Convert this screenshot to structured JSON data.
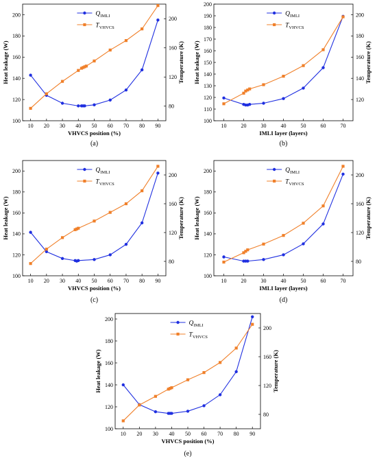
{
  "figure": {
    "colors": {
      "q": "#1f2fe0",
      "t": "#f0802a"
    },
    "legend_q_main": "Q",
    "legend_q_sub": "IMLI",
    "legend_t_main": "T",
    "legend_t_sub": "VHVCS"
  },
  "chart_data": [
    {
      "type": "line",
      "label": "(a)",
      "xlabel": "VHVCS position (%)",
      "ylabel": "Heat leakage (W)",
      "y2label": "Temperature (K)",
      "xlim": [
        5,
        95
      ],
      "xticks": [
        10,
        20,
        30,
        40,
        50,
        60,
        70,
        80,
        90
      ],
      "ylim": [
        100,
        210
      ],
      "yticks": [
        100,
        120,
        140,
        160,
        180,
        200
      ],
      "y2lim": [
        60,
        220
      ],
      "y2ticks": [
        80,
        120,
        160,
        200
      ],
      "legend": "top-center",
      "series": [
        {
          "name": "Q_IMLI",
          "axis": "left",
          "marker": "circle",
          "x": [
            10,
            20,
            30,
            40,
            42,
            43,
            44,
            50,
            60,
            70,
            80,
            90
          ],
          "values": [
            143,
            124,
            116.5,
            114,
            114,
            114,
            114,
            115,
            119.5,
            129,
            148,
            195
          ]
        },
        {
          "name": "T_VHVCS",
          "axis": "right",
          "marker": "square",
          "x": [
            10,
            20,
            30,
            40,
            42,
            43,
            44,
            45,
            50,
            60,
            70,
            80,
            90
          ],
          "values": [
            77,
            97,
            114,
            129,
            132,
            133,
            134,
            135,
            142,
            157,
            170,
            186,
            218
          ]
        }
      ]
    },
    {
      "type": "line",
      "label": "(b)",
      "xlabel": "IMLI layer (layers)",
      "ylabel": "Heat leakage (W)",
      "y2label": "Temperature (K)",
      "xlim": [
        5,
        75
      ],
      "xticks": [
        10,
        20,
        30,
        40,
        50,
        60,
        70
      ],
      "ylim": [
        100,
        200
      ],
      "yticks": [
        100,
        110,
        120,
        130,
        140,
        150,
        160,
        170,
        180,
        190,
        200
      ],
      "y2lim": [
        100,
        210
      ],
      "y2ticks": [
        120,
        140,
        160,
        180,
        200
      ],
      "legend": "top-center",
      "series": [
        {
          "name": "Q_IMLI",
          "axis": "left",
          "marker": "circle",
          "x": [
            10,
            20,
            21,
            22,
            23,
            30,
            40,
            50,
            60,
            70
          ],
          "values": [
            119.5,
            114,
            113.5,
            113.5,
            114,
            115,
            119,
            128,
            145.5,
            189.5
          ]
        },
        {
          "name": "T_VHVCS",
          "axis": "right",
          "marker": "square",
          "x": [
            10,
            20,
            21,
            22,
            23,
            30,
            40,
            50,
            60,
            70
          ],
          "values": [
            116,
            126,
            128,
            129,
            130,
            134,
            142,
            152,
            167,
            198
          ]
        }
      ]
    },
    {
      "type": "line",
      "label": "(c)",
      "xlabel": "VHVCS position (%)",
      "ylabel": "Heat leakage (W)",
      "y2label": "Temperature (K)",
      "xlim": [
        5,
        95
      ],
      "xticks": [
        10,
        20,
        30,
        40,
        50,
        60,
        70,
        80,
        90
      ],
      "ylim": [
        100,
        210
      ],
      "yticks": [
        100,
        120,
        140,
        160,
        180,
        200
      ],
      "y2lim": [
        60,
        220
      ],
      "y2ticks": [
        80,
        120,
        160,
        200
      ],
      "legend": "top-center",
      "series": [
        {
          "name": "Q_IMLI",
          "axis": "left",
          "marker": "circle",
          "x": [
            10,
            20,
            30,
            38,
            39,
            40,
            50,
            60,
            70,
            80,
            90
          ],
          "values": [
            141.5,
            123,
            116.5,
            114.5,
            114,
            114.5,
            115.5,
            120,
            130,
            150.5,
            198
          ]
        },
        {
          "name": "T_VHVCS",
          "axis": "right",
          "marker": "square",
          "x": [
            10,
            20,
            30,
            38,
            39,
            40,
            50,
            60,
            70,
            80,
            90
          ],
          "values": [
            77,
            97,
            113,
            124,
            125,
            126,
            136,
            148,
            160,
            178,
            212
          ]
        }
      ]
    },
    {
      "type": "line",
      "label": "(d)",
      "xlabel": "IMLI layer (layers)",
      "ylabel": "Heat leakage (W)",
      "y2label": "Temperature (K)",
      "xlim": [
        5,
        75
      ],
      "xticks": [
        10,
        20,
        30,
        40,
        50,
        60,
        70
      ],
      "ylim": [
        100,
        210
      ],
      "yticks": [
        100,
        120,
        140,
        160,
        180,
        200
      ],
      "y2lim": [
        60,
        220
      ],
      "y2ticks": [
        80,
        120,
        160,
        200
      ],
      "legend": "top-center",
      "series": [
        {
          "name": "Q_IMLI",
          "axis": "left",
          "marker": "circle",
          "x": [
            10,
            20,
            21,
            22,
            30,
            40,
            50,
            60,
            70
          ],
          "values": [
            118,
            114,
            114,
            114,
            115.5,
            120,
            130.5,
            149.5,
            197
          ]
        },
        {
          "name": "T_VHVCS",
          "axis": "right",
          "marker": "square",
          "x": [
            10,
            20,
            21,
            22,
            30,
            40,
            50,
            60,
            70
          ],
          "values": [
            79,
            92,
            94,
            96,
            104,
            116,
            133,
            157,
            212
          ]
        }
      ]
    },
    {
      "type": "line",
      "label": "(e)",
      "xlabel": "VHVCS position (%)",
      "ylabel": "Heat leakage (W)",
      "y2label": "Temperature (K)",
      "xlim": [
        5,
        95
      ],
      "xticks": [
        10,
        20,
        30,
        40,
        50,
        60,
        70,
        80,
        90
      ],
      "ylim": [
        100,
        205
      ],
      "yticks": [
        100,
        120,
        140,
        160,
        180,
        200
      ],
      "y2lim": [
        60,
        220
      ],
      "y2ticks": [
        80,
        120,
        160,
        200
      ],
      "legend": "top-center",
      "series": [
        {
          "name": "Q_IMLI",
          "axis": "left",
          "marker": "circle",
          "x": [
            10,
            20,
            30,
            38,
            39,
            40,
            50,
            60,
            70,
            80,
            90
          ],
          "values": [
            140,
            122,
            115.5,
            114,
            114,
            114,
            116,
            121,
            131,
            152,
            202
          ]
        },
        {
          "name": "T_VHVCS",
          "axis": "right",
          "marker": "square",
          "x": [
            10,
            20,
            30,
            38,
            39,
            40,
            50,
            60,
            70,
            80,
            90
          ],
          "values": [
            71,
            93,
            105,
            115,
            116,
            117,
            128,
            138,
            152,
            172,
            205
          ]
        }
      ]
    }
  ]
}
